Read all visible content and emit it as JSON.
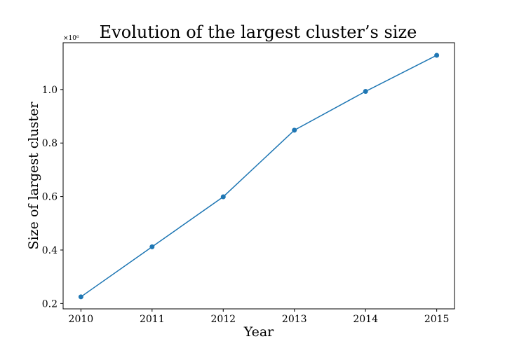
{
  "chart_data": {
    "type": "line",
    "title": "Evolution of the largest cluster’s size",
    "xlabel": "Year",
    "ylabel": "Size of largest cluster",
    "y_multiplier_label": "×10⁶",
    "x": [
      2010,
      2011,
      2012,
      2013,
      2014,
      2015
    ],
    "series": [
      {
        "values": [
          225000,
          412000,
          599000,
          848000,
          993000,
          1128000
        ],
        "color": "#1f77b4"
      }
    ],
    "xlim": [
      2009.75,
      2015.25
    ],
    "ylim": [
      180000,
      1175000
    ],
    "x_ticks": [
      2010,
      2011,
      2012,
      2013,
      2014,
      2015
    ],
    "y_ticks": [
      200000,
      400000,
      600000,
      800000,
      1000000
    ],
    "y_tick_labels": [
      "0.2",
      "0.4",
      "0.6",
      "0.8",
      "1.0"
    ],
    "grid": false,
    "legend": false
  }
}
